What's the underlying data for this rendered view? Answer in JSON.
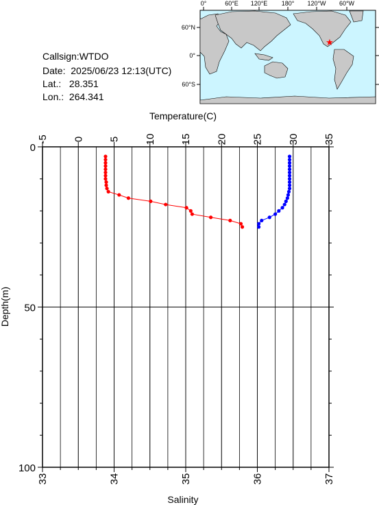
{
  "station": {
    "callsign_line": "Callsign:WTDO",
    "date_label": "Date:",
    "date_value": "2025/06/23 12:13(UTC)",
    "lat_label": "Lat.:",
    "lat_value": "28.351",
    "lon_label": "Lon.:",
    "lon_value": "264.341"
  },
  "map": {
    "top_labels": [
      "0°",
      "60°E",
      "120°E",
      "180°",
      "120°W",
      "60°W"
    ],
    "side_labels": [
      "60°N",
      "0°",
      "60°S"
    ],
    "ocean_color": "#ccf5ff",
    "land_color": "#c8c8c8",
    "marker": "red-star-icon",
    "marker_color": "#ff0000"
  },
  "chart_data": {
    "type": "line",
    "title": "",
    "depth_axis": {
      "label": "Depth(m)",
      "range": [
        0,
        100
      ],
      "ticks": [
        0,
        50,
        100
      ],
      "inverted": true
    },
    "temperature_axis": {
      "label": "Temperature(C)",
      "range": [
        -5,
        35
      ],
      "ticks": [
        -5,
        0,
        5,
        10,
        15,
        20,
        25,
        30,
        35
      ],
      "position": "top"
    },
    "salinity_axis": {
      "label": "Salinity",
      "range": [
        33,
        37
      ],
      "ticks": [
        33,
        34,
        35,
        36,
        37
      ],
      "position": "bottom"
    },
    "grid": true,
    "series": [
      {
        "quantity": "temperature",
        "color": "#ff0000",
        "depth": [
          3,
          4,
          5,
          6,
          7,
          8,
          9,
          10,
          11,
          12,
          13,
          14,
          15,
          16,
          17,
          18,
          19,
          20,
          21,
          22,
          23,
          24,
          25
        ],
        "values": [
          3.8,
          3.8,
          3.8,
          3.8,
          3.8,
          3.8,
          3.8,
          3.8,
          3.9,
          3.9,
          4.0,
          4.2,
          5.7,
          7.0,
          10.1,
          12.2,
          15.1,
          15.7,
          15.9,
          18.5,
          21.2,
          22.7,
          22.9
        ]
      },
      {
        "quantity": "salinity",
        "color": "#0000ff",
        "depth": [
          3,
          4,
          5,
          6,
          7,
          8,
          9,
          10,
          11,
          12,
          13,
          14,
          15,
          16,
          17,
          18,
          19,
          20,
          21,
          22,
          23,
          24,
          25
        ],
        "values": [
          36.45,
          36.45,
          36.45,
          36.45,
          36.45,
          36.45,
          36.45,
          36.45,
          36.45,
          36.45,
          36.45,
          36.44,
          36.43,
          36.42,
          36.4,
          36.38,
          36.35,
          36.3,
          36.25,
          36.17,
          36.06,
          36.02,
          36.02
        ]
      }
    ]
  }
}
